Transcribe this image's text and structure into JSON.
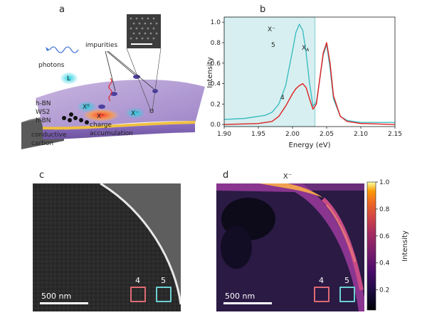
{
  "panels": {
    "a": {
      "letter": "a",
      "labels": {
        "photons": "photons",
        "impurities": "impurities",
        "hbn_top": "h-BN",
        "ws2": "WS2",
        "hbn_bottom": "h-BN",
        "conductive": "conductive",
        "carbon": "carbon",
        "charge": "charge",
        "accumulation": "accumulation",
        "L": "L",
        "X0": "X⁰",
        "Xm1": "X⁻",
        "Xm2": "X⁻"
      }
    },
    "b": {
      "letter": "b"
    },
    "c": {
      "letter": "c",
      "scalebar": "500 nm",
      "box4": "4",
      "box5": "5"
    },
    "d": {
      "letter": "d",
      "title": "X⁻",
      "scalebar": "500 nm",
      "box4": "4",
      "box5": "5",
      "colorbar_label": "Intensity",
      "colorbar_ticks": [
        "1.0",
        "0.8",
        "0.6",
        "0.4",
        "0.2"
      ],
      "colorbar_tick_values": [
        1.0,
        0.8,
        0.6,
        0.4,
        0.2
      ]
    }
  },
  "colors": {
    "cyan": "#3cbcc2",
    "red": "#e02020",
    "shade": "#d7eff0",
    "box4": "#e06a73",
    "box5": "#6cd0d2"
  },
  "chart_data": {
    "type": "line",
    "xlabel": "Energy (eV)",
    "ylabel": "Intensity",
    "xlim": [
      1.9,
      2.15
    ],
    "ylim": [
      -0.02,
      1.05
    ],
    "xticks": [
      "1.90",
      "1.95",
      "2.00",
      "2.05",
      "2.10",
      "2.15"
    ],
    "xtick_values": [
      1.9,
      1.95,
      2.0,
      2.05,
      2.1,
      2.15
    ],
    "yticks": [
      "0.0",
      "0.2",
      "0.4",
      "0.6",
      "0.8",
      "1.0"
    ],
    "ytick_values": [
      0.0,
      0.2,
      0.4,
      0.6,
      0.8,
      1.0
    ],
    "shaded_region": [
      1.9,
      2.033
    ],
    "annotations": {
      "trion": "X⁻",
      "exciton_base": "X",
      "exciton_sub": "A"
    },
    "series": [
      {
        "name": "5",
        "color": "#3cbcc2",
        "x": [
          1.9,
          1.93,
          1.96,
          1.97,
          1.98,
          1.99,
          2.0,
          2.005,
          2.01,
          2.015,
          2.02,
          2.025,
          2.03,
          2.035,
          2.04,
          2.045,
          2.05,
          2.055,
          2.06,
          2.07,
          2.08,
          2.1,
          2.15
        ],
        "y": [
          0.05,
          0.06,
          0.09,
          0.12,
          0.2,
          0.38,
          0.72,
          0.9,
          0.98,
          0.92,
          0.7,
          0.4,
          0.18,
          0.22,
          0.45,
          0.68,
          0.78,
          0.55,
          0.25,
          0.08,
          0.04,
          0.02,
          0.02
        ]
      },
      {
        "name": "4",
        "color": "#e02020",
        "x": [
          1.9,
          1.95,
          1.97,
          1.98,
          1.99,
          2.0,
          2.005,
          2.01,
          2.015,
          2.02,
          2.025,
          2.03,
          2.035,
          2.04,
          2.045,
          2.05,
          2.055,
          2.06,
          2.07,
          2.08,
          2.1,
          2.15
        ],
        "y": [
          0.0,
          0.01,
          0.03,
          0.08,
          0.18,
          0.3,
          0.35,
          0.38,
          0.4,
          0.36,
          0.25,
          0.15,
          0.2,
          0.45,
          0.7,
          0.8,
          0.6,
          0.28,
          0.08,
          0.03,
          0.01,
          0.0
        ]
      }
    ]
  }
}
